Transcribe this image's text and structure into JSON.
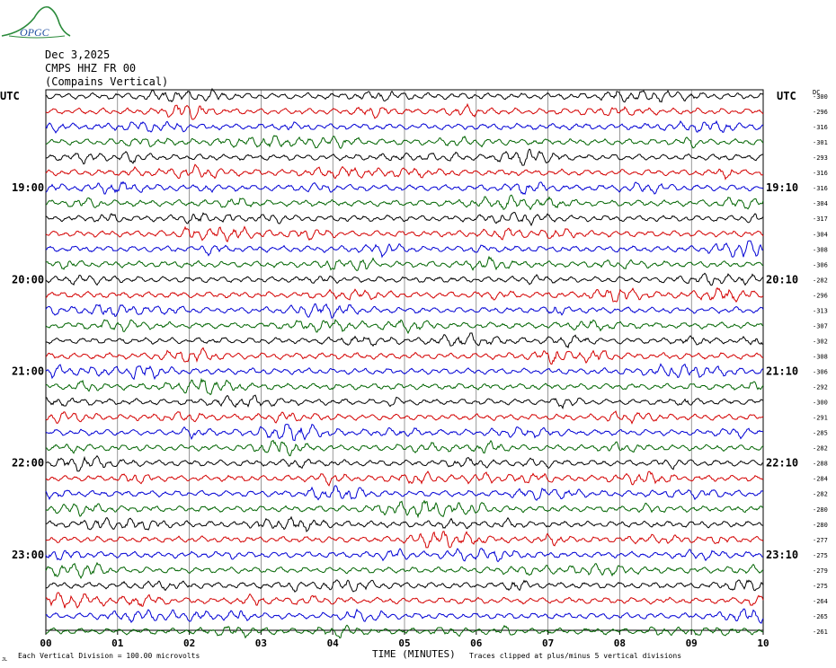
{
  "logo": {
    "text": "OPGC",
    "color": "#2a8a3a",
    "text_color": "#1f4fa0"
  },
  "header": {
    "date": "Dec 3,2025",
    "station": "CMPS HHZ FR 00",
    "location": "(Compains Vertical)"
  },
  "labels": {
    "utc_left": "UTC",
    "utc_right": "UTC",
    "dc_header": "DC",
    "bottom_left": "Each Vertical Division =  100.00 microvolts",
    "bottom_right": "Traces clipped at plus/minus 5 vertical divisions",
    "corner_mark": "JL"
  },
  "chart_data": {
    "type": "line",
    "xlabel": "TIME (MINUTES)",
    "xlim": [
      0,
      10
    ],
    "x_ticks": [
      "00",
      "01",
      "02",
      "03",
      "04",
      "05",
      "06",
      "07",
      "08",
      "09",
      "10"
    ],
    "trace_colors": [
      "#000000",
      "#d40000",
      "#0000d4",
      "#006400"
    ],
    "left_time_labels": [
      {
        "trace": 6,
        "label": "19:00"
      },
      {
        "trace": 12,
        "label": "20:00"
      },
      {
        "trace": 18,
        "label": "21:00"
      },
      {
        "trace": 24,
        "label": "22:00"
      },
      {
        "trace": 30,
        "label": "23:00"
      }
    ],
    "right_time_labels": [
      {
        "trace": 6,
        "label": "19:10"
      },
      {
        "trace": 12,
        "label": "20:10"
      },
      {
        "trace": 18,
        "label": "21:10"
      },
      {
        "trace": 24,
        "label": "22:10"
      },
      {
        "trace": 30,
        "label": "23:10"
      }
    ],
    "dc_offsets": [
      -300,
      -296,
      -316,
      -301,
      -293,
      -316,
      -316,
      -304,
      -317,
      -304,
      -308,
      -306,
      -282,
      -296,
      -313,
      -307,
      -302,
      -308,
      -306,
      -292,
      -300,
      -291,
      -285,
      -282,
      -288,
      -284,
      -282,
      -280,
      -280,
      -277,
      -275,
      -279,
      -275,
      -264,
      -265,
      -261
    ]
  }
}
